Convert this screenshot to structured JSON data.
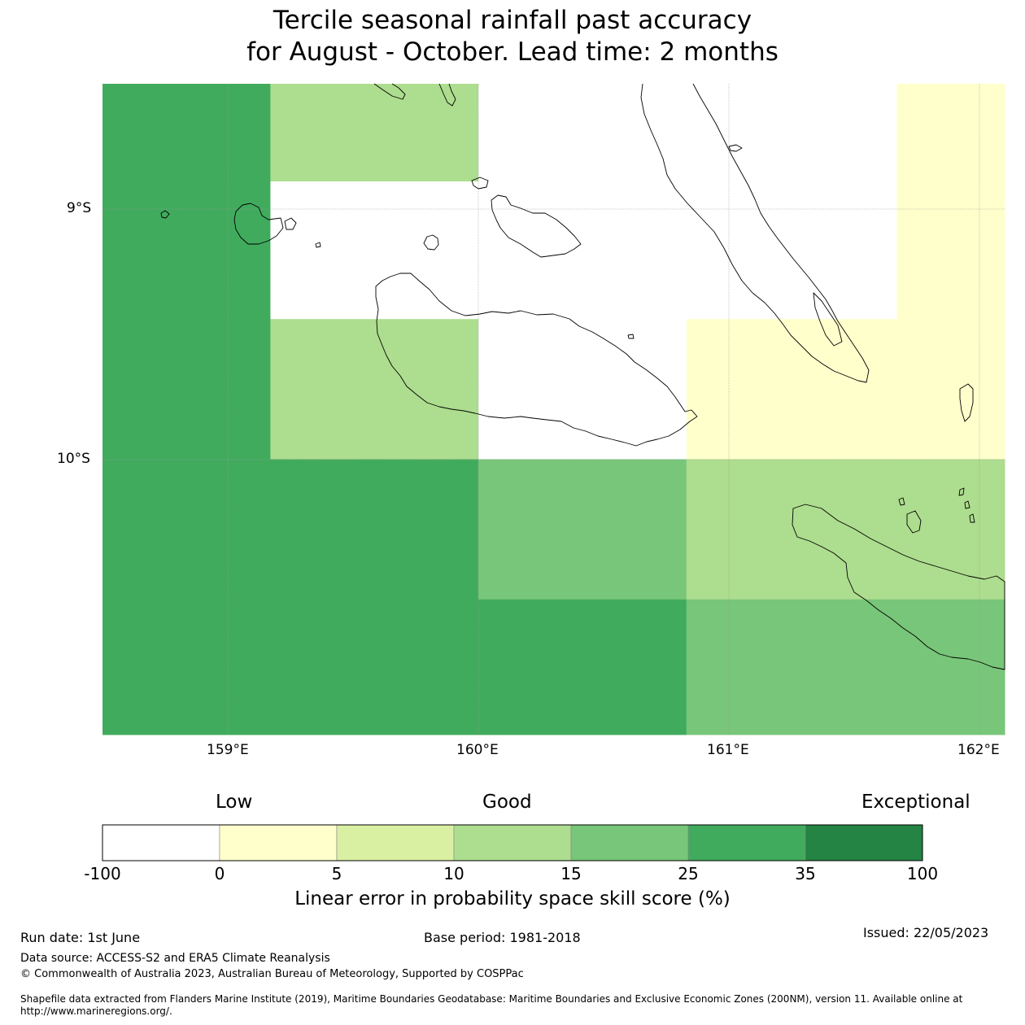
{
  "title": {
    "line1": "Tercile seasonal rainfall past accuracy",
    "line2": "for August - October. Lead time: 2 months"
  },
  "map": {
    "lon_ticks": [
      "159°E",
      "160°E",
      "161°E",
      "162°E"
    ],
    "lat_ticks": [
      "9°S",
      "10°S"
    ]
  },
  "skill_grid": {
    "lon_edges": [
      158.5,
      159.17,
      160.0,
      160.83,
      161.67,
      162.1
    ],
    "lat_edges": [
      -8.5,
      -8.89,
      -9.44,
      -10.0,
      -10.56,
      -11.1
    ],
    "cells": [
      [
        25,
        10,
        -100,
        -100,
        0
      ],
      [
        25,
        -100,
        -100,
        -100,
        0
      ],
      [
        25,
        10,
        -100,
        0,
        0
      ],
      [
        25,
        25,
        15,
        10,
        10
      ],
      [
        25,
        25,
        25,
        15,
        15
      ]
    ]
  },
  "legend": {
    "words": [
      "Low",
      "Good",
      "Exceptional"
    ],
    "ticks": [
      "-100",
      "0",
      "5",
      "10",
      "15",
      "25",
      "35",
      "100"
    ],
    "colors": [
      "#ffffff",
      "#ffffcc",
      "#d9f0a3",
      "#addd8e",
      "#78c679",
      "#41ab5d",
      "#238443"
    ],
    "title": "Linear error in probability space skill score (%)"
  },
  "footer": {
    "run_date": "Run date: 1st June",
    "base_period": "Base period: 1981-2018",
    "issued": "Issued: 22/05/2023",
    "data_source": "Data source: ACCESS-S2 and ERA5 Climate Reanalysis",
    "copyright": "© Commonwealth of Australia 2023, Australian Bureau of Meteorology, Supported by COSPPac",
    "shapefile_line1": "Shapefile data extracted from Flanders Marine Institute (2019), Maritime Boundaries Geodatabase: Maritime Boundaries and Exclusive Economic Zones (200NM), version 11. Available online at",
    "shapefile_line2": "http://www.marineregions.org/."
  }
}
